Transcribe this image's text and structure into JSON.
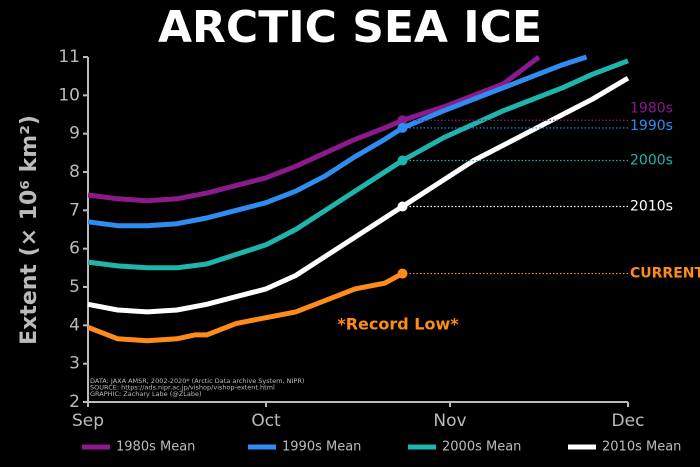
{
  "chart_data": {
    "type": "line",
    "title": "ARCTIC SEA ICE",
    "y_label": "Extent (× 10⁶ km²)",
    "xlim": [
      0,
      91
    ],
    "xticks": [
      {
        "value": 0,
        "label": "Sep"
      },
      {
        "value": 30,
        "label": "Oct"
      },
      {
        "value": 61,
        "label": "Nov"
      },
      {
        "value": 91,
        "label": "Dec"
      }
    ],
    "ylim": [
      2,
      11
    ],
    "yticks": [
      2,
      3,
      4,
      5,
      6,
      7,
      8,
      9,
      10,
      11
    ],
    "series": [
      {
        "name": "1980s Mean",
        "end_label": "1980s",
        "color": "#8b1a8b",
        "x": [
          0,
          5,
          10,
          15,
          20,
          25,
          30,
          35,
          40,
          45,
          50,
          53,
          60,
          65,
          70,
          76
        ],
        "values": [
          7.4,
          7.3,
          7.25,
          7.3,
          7.45,
          7.65,
          7.85,
          8.15,
          8.5,
          8.85,
          9.15,
          9.35,
          9.7,
          10.0,
          10.3,
          11
        ]
      },
      {
        "name": "1990s Mean",
        "end_label": "1990s",
        "color": "#2f8cf0",
        "x": [
          0,
          5,
          10,
          15,
          20,
          25,
          30,
          35,
          40,
          45,
          50,
          53,
          60,
          65,
          70,
          75,
          80,
          84
        ],
        "values": [
          6.7,
          6.6,
          6.6,
          6.65,
          6.8,
          7.0,
          7.2,
          7.5,
          7.9,
          8.4,
          8.85,
          9.15,
          9.6,
          9.9,
          10.2,
          10.5,
          10.8,
          11
        ]
      },
      {
        "name": "2000s Mean",
        "end_label": "2000s",
        "color": "#1fb5ad",
        "x": [
          0,
          5,
          10,
          15,
          20,
          25,
          30,
          35,
          40,
          45,
          50,
          53,
          60,
          65,
          70,
          75,
          80,
          85,
          91
        ],
        "values": [
          5.65,
          5.55,
          5.5,
          5.5,
          5.6,
          5.85,
          6.1,
          6.5,
          7.0,
          7.5,
          8.0,
          8.3,
          8.9,
          9.25,
          9.6,
          9.9,
          10.2,
          10.55,
          10.9
        ]
      },
      {
        "name": "2010s Mean",
        "end_label": "2010s",
        "color": "#ffffff",
        "x": [
          0,
          5,
          10,
          15,
          20,
          25,
          30,
          35,
          40,
          45,
          50,
          53,
          60,
          65,
          70,
          75,
          80,
          85,
          91
        ],
        "values": [
          4.55,
          4.4,
          4.35,
          4.4,
          4.55,
          4.75,
          4.95,
          5.3,
          5.8,
          6.3,
          6.8,
          7.1,
          7.8,
          8.3,
          8.7,
          9.1,
          9.5,
          9.9,
          10.45
        ]
      }
    ],
    "current": {
      "end_label": "CURRENT",
      "color": "#ff8c1a",
      "x": [
        0,
        5,
        10,
        15,
        18,
        20,
        25,
        30,
        35,
        40,
        45,
        50,
        53
      ],
      "values": [
        3.95,
        3.65,
        3.6,
        3.65,
        3.75,
        3.75,
        4.05,
        4.2,
        4.35,
        4.65,
        4.95,
        5.1,
        5.35
      ]
    },
    "annotation": "*Record Low*",
    "credits": [
      "DATA: JAXA AMSR, 2002-2020* (Arctic Data archive System, NIPR)",
      "SOURCE: https://ads.nipr.ac.jp/vishop/vishop-extent.html",
      "GRAPHIC: Zachary Labe (@ZLabe)"
    ]
  }
}
